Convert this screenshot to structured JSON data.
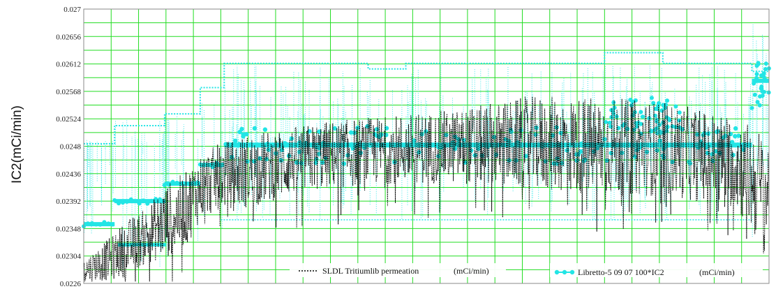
{
  "chart_data": {
    "type": "line",
    "title": "",
    "xlabel": "",
    "ylabel": "IC2(mCi/min)",
    "ylim": [
      0.0226,
      0.027
    ],
    "y_ticks": [
      "0.027",
      "0.02656",
      "0.02612",
      "0.02568",
      "0.02524",
      "0.0248",
      "0.02436",
      "0.02392",
      "0.02348",
      "0.02304",
      "0.0226"
    ],
    "x_tick_labels": [],
    "xlim": [
      0,
      1
    ],
    "grid": true,
    "grid_color": "#22dd22",
    "legend_position": "bottom",
    "series": [
      {
        "name": "SLDL Tritiumlib permeation",
        "unit": "(mCi/min)",
        "color": "#000000",
        "style": "dotted",
        "band_points": [
          [
            0.0,
            0.023,
            0.02262
          ],
          [
            0.04,
            0.02335,
            0.02265
          ],
          [
            0.06,
            0.0236,
            0.0227
          ],
          [
            0.09,
            0.0238,
            0.0229
          ],
          [
            0.12,
            0.0242,
            0.023
          ],
          [
            0.15,
            0.0244,
            0.0232
          ],
          [
            0.17,
            0.0247,
            0.0236
          ],
          [
            0.2,
            0.02485,
            0.0238
          ],
          [
            0.24,
            0.025,
            0.0238
          ],
          [
            0.3,
            0.0251,
            0.024
          ],
          [
            0.35,
            0.0252,
            0.0241
          ],
          [
            0.45,
            0.0253,
            0.0242
          ],
          [
            0.55,
            0.0254,
            0.0242
          ],
          [
            0.65,
            0.0256,
            0.0241
          ],
          [
            0.75,
            0.0256,
            0.024
          ],
          [
            0.85,
            0.0255,
            0.024
          ],
          [
            0.95,
            0.0253,
            0.0238
          ],
          [
            1.0,
            0.025,
            0.023
          ]
        ]
      },
      {
        "name": "Libretto-5 09 07 100*IC2",
        "unit": "(mCi/min)",
        "color": "#22e5e5",
        "style": "dotted-markers",
        "step_points": [
          [
            0.0,
            0.02484
          ],
          [
            0.045,
            0.02484
          ],
          [
            0.045,
            0.02513
          ],
          [
            0.118,
            0.02513
          ],
          [
            0.118,
            0.02532
          ],
          [
            0.17,
            0.02532
          ],
          [
            0.17,
            0.02574
          ],
          [
            0.205,
            0.02574
          ],
          [
            0.205,
            0.02613
          ],
          [
            0.415,
            0.02613
          ],
          [
            0.415,
            0.02604
          ],
          [
            0.47,
            0.02604
          ],
          [
            0.47,
            0.02613
          ],
          [
            0.76,
            0.02613
          ],
          [
            0.76,
            0.0263
          ],
          [
            0.845,
            0.0263
          ],
          [
            0.845,
            0.02613
          ],
          [
            0.975,
            0.02613
          ],
          [
            0.975,
            0.026
          ],
          [
            1.0,
            0.026
          ]
        ],
        "main_level": 0.02482,
        "main_level_range": [
          0.205,
          0.975
        ],
        "early_levels": [
          [
            0.0,
            0.045,
            0.02355
          ],
          [
            0.045,
            0.118,
            0.02392
          ],
          [
            0.118,
            0.17,
            0.0242
          ],
          [
            0.17,
            0.205,
            0.0245
          ]
        ],
        "low_level": 0.02362,
        "late_level": 0.02585
      }
    ]
  }
}
